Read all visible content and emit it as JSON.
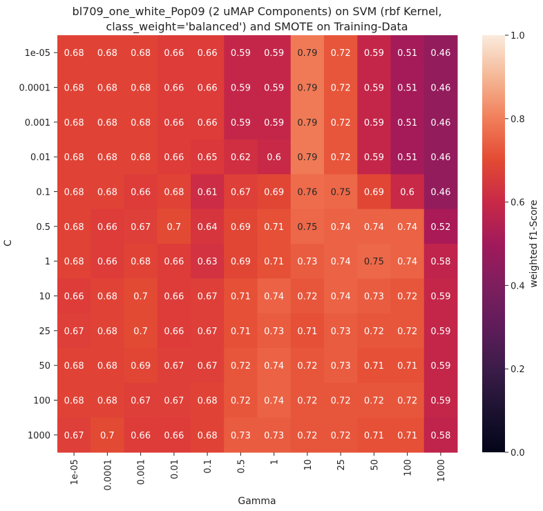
{
  "chart_data": {
    "type": "heatmap",
    "title": "bl709_one_white_Pop09 (2 uMAP Components) on SVM (rbf Kernel, class_weight='balanced') and SMOTE on Training-Data",
    "title_lines": [
      "bl709_one_white_Pop09 (2 uMAP Components) on SVM (rbf Kernel,",
      "class_weight='balanced') and SMOTE on Training-Data"
    ],
    "xlabel": "Gamma",
    "ylabel": "C",
    "x_categories": [
      "1e-05",
      "0.0001",
      "0.001",
      "0.01",
      "0.1",
      "0.5",
      "1",
      "10",
      "25",
      "50",
      "100",
      "1000"
    ],
    "y_categories": [
      "1e-05",
      "0.0001",
      "0.001",
      "0.01",
      "0.1",
      "0.5",
      "1",
      "10",
      "25",
      "50",
      "100",
      "1000"
    ],
    "values": [
      [
        0.68,
        0.68,
        0.68,
        0.66,
        0.66,
        0.59,
        0.59,
        0.79,
        0.72,
        0.59,
        0.51,
        0.46
      ],
      [
        0.68,
        0.68,
        0.68,
        0.66,
        0.66,
        0.59,
        0.59,
        0.79,
        0.72,
        0.59,
        0.51,
        0.46
      ],
      [
        0.68,
        0.68,
        0.68,
        0.66,
        0.66,
        0.59,
        0.59,
        0.79,
        0.72,
        0.59,
        0.51,
        0.46
      ],
      [
        0.68,
        0.68,
        0.68,
        0.66,
        0.65,
        0.62,
        0.6,
        0.79,
        0.72,
        0.59,
        0.51,
        0.46
      ],
      [
        0.68,
        0.68,
        0.66,
        0.68,
        0.61,
        0.67,
        0.69,
        0.76,
        0.75,
        0.69,
        0.6,
        0.46
      ],
      [
        0.68,
        0.66,
        0.67,
        0.7,
        0.64,
        0.69,
        0.71,
        0.75,
        0.74,
        0.74,
        0.74,
        0.52
      ],
      [
        0.68,
        0.66,
        0.68,
        0.66,
        0.63,
        0.69,
        0.71,
        0.73,
        0.74,
        0.75,
        0.74,
        0.58
      ],
      [
        0.66,
        0.68,
        0.7,
        0.66,
        0.67,
        0.71,
        0.74,
        0.72,
        0.74,
        0.73,
        0.72,
        0.59
      ],
      [
        0.67,
        0.68,
        0.7,
        0.66,
        0.67,
        0.71,
        0.73,
        0.71,
        0.73,
        0.72,
        0.72,
        0.59
      ],
      [
        0.68,
        0.68,
        0.69,
        0.67,
        0.67,
        0.72,
        0.74,
        0.72,
        0.73,
        0.71,
        0.71,
        0.59
      ],
      [
        0.68,
        0.68,
        0.67,
        0.67,
        0.68,
        0.72,
        0.74,
        0.72,
        0.72,
        0.72,
        0.72,
        0.59
      ],
      [
        0.67,
        0.7,
        0.66,
        0.66,
        0.68,
        0.73,
        0.73,
        0.72,
        0.72,
        0.71,
        0.71,
        0.58
      ]
    ],
    "colorbar": {
      "label": "weighted f1-Score",
      "range": [
        0.0,
        1.0
      ],
      "ticks": [
        "0.0",
        "0.2",
        "0.4",
        "0.6",
        "0.8",
        "1.0"
      ],
      "colormap": "rocket"
    },
    "annotation_dark_text_threshold": 0.75,
    "grid": false
  }
}
